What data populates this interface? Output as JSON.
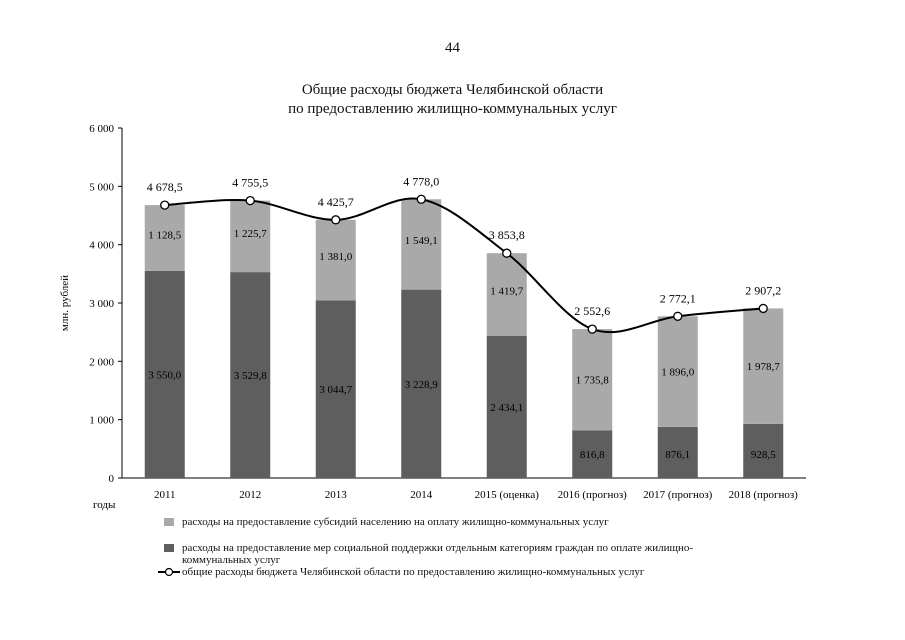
{
  "page_number": "44",
  "chart_data": {
    "type": "bar",
    "title_line1": "Общие расходы бюджета Челябинской области",
    "title_line2": "по предоставлению жилищно-коммунальных услуг",
    "ylabel": "млн. рублей",
    "xlabel": "годы",
    "ylim": [
      0,
      6000
    ],
    "yticks": [
      "0",
      "1 000",
      "2 000",
      "3 000",
      "4 000",
      "5 000",
      "6 000"
    ],
    "categories": [
      "2011",
      "2012",
      "2013",
      "2014",
      "2015 (оценка)",
      "2016 (прогноз)",
      "2017 (прогноз)",
      "2018 (прогноз)"
    ],
    "stacked": true,
    "series": [
      {
        "name": "расходы на предоставление мер социальной поддержки отдельным категориям граждан по оплате жилищно-коммунальных услуг",
        "values": [
          3550.0,
          3529.8,
          3044.7,
          3228.9,
          2434.1,
          816.8,
          876.1,
          928.5
        ],
        "labels": [
          "3 550,0",
          "3 529,8",
          "3 044,7",
          "3 228,9",
          "2 434,1",
          "816,8",
          "876,1",
          "928,5"
        ],
        "color": "#5e5e5e"
      },
      {
        "name": "расходы на предоставление субсидий населению на оплату жилищно-коммунальных услуг",
        "values": [
          1128.5,
          1225.7,
          1381.0,
          1549.1,
          1419.7,
          1735.8,
          1896.0,
          1978.7
        ],
        "labels": [
          "1 128,5",
          "1 225,7",
          "1 381,0",
          "1 549,1",
          "1 419,7",
          "1 735,8",
          "1 896,0",
          "1 978,7"
        ],
        "color": "#a9a9a9"
      }
    ],
    "line": {
      "name": "общие расходы бюджета Челябинской области по предоставлению жилищно-коммунальных услуг",
      "values": [
        4678.5,
        4755.5,
        4425.7,
        4778.0,
        3853.8,
        2552.6,
        2772.1,
        2907.2
      ],
      "labels": [
        "4 678,5",
        "4 755,5",
        "4 425,7",
        "4 778,0",
        "3 853,8",
        "2 552,6",
        "2 772,1",
        "2 907,2"
      ],
      "color": "#000000"
    },
    "legend_position": "bottom"
  }
}
